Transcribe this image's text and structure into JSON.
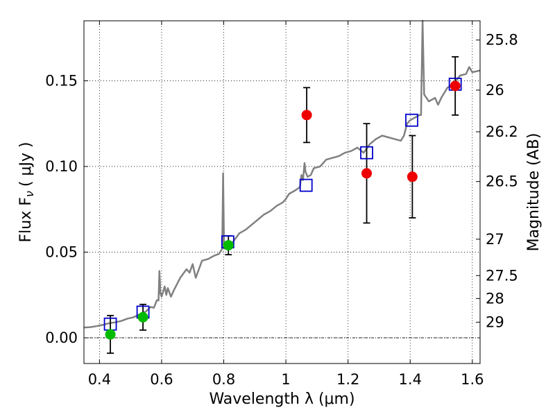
{
  "chart_data": {
    "type": "scatter",
    "xlabel": "Wavelength  λ (μm)",
    "ylabel": "Flux  F",
    "ylabel_sub": "ν",
    "ylabel_unit": "( μJy )",
    "y2label": "Magnitude (AB)",
    "xlim": [
      0.35,
      1.625
    ],
    "ylim": [
      -0.015,
      0.185
    ],
    "grid": true,
    "x_ticks": [
      0.4,
      0.6,
      0.8,
      1.0,
      1.2,
      1.4,
      1.6
    ],
    "x_tick_labels": [
      "0.4",
      "0.6",
      "0.8",
      "1",
      "1.2",
      "1.4",
      "1.6"
    ],
    "y_ticks": [
      0.0,
      0.05,
      0.1,
      0.15
    ],
    "y_tick_labels": [
      "0.00",
      "0.05",
      "0.10",
      "0.15"
    ],
    "mag_ticks": [
      25.8,
      26,
      26.2,
      26.5,
      27,
      27.5,
      28,
      29
    ],
    "mag_tick_labels": [
      "25.8",
      "26",
      "26.2",
      "26.5",
      "27",
      "27.5",
      "28",
      "29"
    ],
    "colors": {
      "spectrum": "#808080",
      "model_boxes": "#0000cc",
      "green_points": "#00bb00",
      "red_points": "#ee0000",
      "errorbars": "#000000"
    },
    "spectrum": [
      [
        0.35,
        0.006
      ],
      [
        0.37,
        0.0062
      ],
      [
        0.39,
        0.0068
      ],
      [
        0.41,
        0.0075
      ],
      [
        0.43,
        0.0085
      ],
      [
        0.45,
        0.009
      ],
      [
        0.47,
        0.0098
      ],
      [
        0.49,
        0.0112
      ],
      [
        0.51,
        0.012
      ],
      [
        0.53,
        0.0138
      ],
      [
        0.55,
        0.0155
      ],
      [
        0.565,
        0.018
      ],
      [
        0.575,
        0.0175
      ],
      [
        0.585,
        0.022
      ],
      [
        0.59,
        0.0218
      ],
      [
        0.593,
        0.039
      ],
      [
        0.596,
        0.026
      ],
      [
        0.6,
        0.024
      ],
      [
        0.61,
        0.03
      ],
      [
        0.615,
        0.025
      ],
      [
        0.62,
        0.029
      ],
      [
        0.63,
        0.024
      ],
      [
        0.64,
        0.028
      ],
      [
        0.66,
        0.035
      ],
      [
        0.68,
        0.04
      ],
      [
        0.69,
        0.038
      ],
      [
        0.7,
        0.043
      ],
      [
        0.71,
        0.035
      ],
      [
        0.72,
        0.04
      ],
      [
        0.73,
        0.045
      ],
      [
        0.75,
        0.046
      ],
      [
        0.77,
        0.048
      ],
      [
        0.785,
        0.049
      ],
      [
        0.795,
        0.052
      ],
      [
        0.798,
        0.096
      ],
      [
        0.801,
        0.052
      ],
      [
        0.81,
        0.054
      ],
      [
        0.83,
        0.056
      ],
      [
        0.85,
        0.061
      ],
      [
        0.87,
        0.063
      ],
      [
        0.89,
        0.066
      ],
      [
        0.91,
        0.069
      ],
      [
        0.93,
        0.072
      ],
      [
        0.95,
        0.074
      ],
      [
        0.97,
        0.077
      ],
      [
        0.99,
        0.079
      ],
      [
        1.0,
        0.081
      ],
      [
        1.01,
        0.084
      ],
      [
        1.03,
        0.086
      ],
      [
        1.045,
        0.088
      ],
      [
        1.05,
        0.095
      ],
      [
        1.055,
        0.092
      ],
      [
        1.06,
        0.102
      ],
      [
        1.063,
        0.097
      ],
      [
        1.07,
        0.094
      ],
      [
        1.08,
        0.095
      ],
      [
        1.09,
        0.099
      ],
      [
        1.11,
        0.1
      ],
      [
        1.13,
        0.104
      ],
      [
        1.15,
        0.105
      ],
      [
        1.17,
        0.106
      ],
      [
        1.19,
        0.108
      ],
      [
        1.21,
        0.109
      ],
      [
        1.23,
        0.111
      ],
      [
        1.25,
        0.108
      ],
      [
        1.27,
        0.113
      ],
      [
        1.29,
        0.116
      ],
      [
        1.31,
        0.118
      ],
      [
        1.33,
        0.117
      ],
      [
        1.35,
        0.116
      ],
      [
        1.37,
        0.115
      ],
      [
        1.38,
        0.118
      ],
      [
        1.39,
        0.125
      ],
      [
        1.4,
        0.127
      ],
      [
        1.42,
        0.129
      ],
      [
        1.43,
        0.13
      ],
      [
        1.435,
        0.13
      ],
      [
        1.44,
        0.185
      ],
      [
        1.445,
        0.142
      ],
      [
        1.46,
        0.138
      ],
      [
        1.48,
        0.14
      ],
      [
        1.49,
        0.136
      ],
      [
        1.5,
        0.14
      ],
      [
        1.52,
        0.146
      ],
      [
        1.54,
        0.148
      ],
      [
        1.56,
        0.153
      ],
      [
        1.58,
        0.154
      ],
      [
        1.59,
        0.158
      ],
      [
        1.6,
        0.155
      ],
      [
        1.625,
        0.156
      ]
    ],
    "model_boxes": [
      {
        "x": 0.435,
        "y": 0.008
      },
      {
        "x": 0.54,
        "y": 0.015
      },
      {
        "x": 0.813,
        "y": 0.056
      },
      {
        "x": 1.065,
        "y": 0.089
      },
      {
        "x": 1.26,
        "y": 0.108
      },
      {
        "x": 1.405,
        "y": 0.127
      },
      {
        "x": 1.545,
        "y": 0.148
      }
    ],
    "green_points": [
      {
        "x": 0.435,
        "y": 0.002,
        "err_lo": 0.011,
        "err_hi": 0.011
      },
      {
        "x": 0.54,
        "y": 0.012,
        "err_lo": 0.0075,
        "err_hi": 0.0075
      },
      {
        "x": 0.815,
        "y": 0.054,
        "err_lo": 0.0055,
        "err_hi": 0.0055
      }
    ],
    "red_points": [
      {
        "x": 1.067,
        "y": 0.13,
        "err_lo": 0.016,
        "err_hi": 0.016
      },
      {
        "x": 1.26,
        "y": 0.096,
        "err_lo": 0.029,
        "err_hi": 0.029
      },
      {
        "x": 1.407,
        "y": 0.094,
        "err_lo": 0.024,
        "err_hi": 0.024
      },
      {
        "x": 1.545,
        "y": 0.147,
        "err_lo": 0.017,
        "err_hi": 0.017
      }
    ]
  }
}
